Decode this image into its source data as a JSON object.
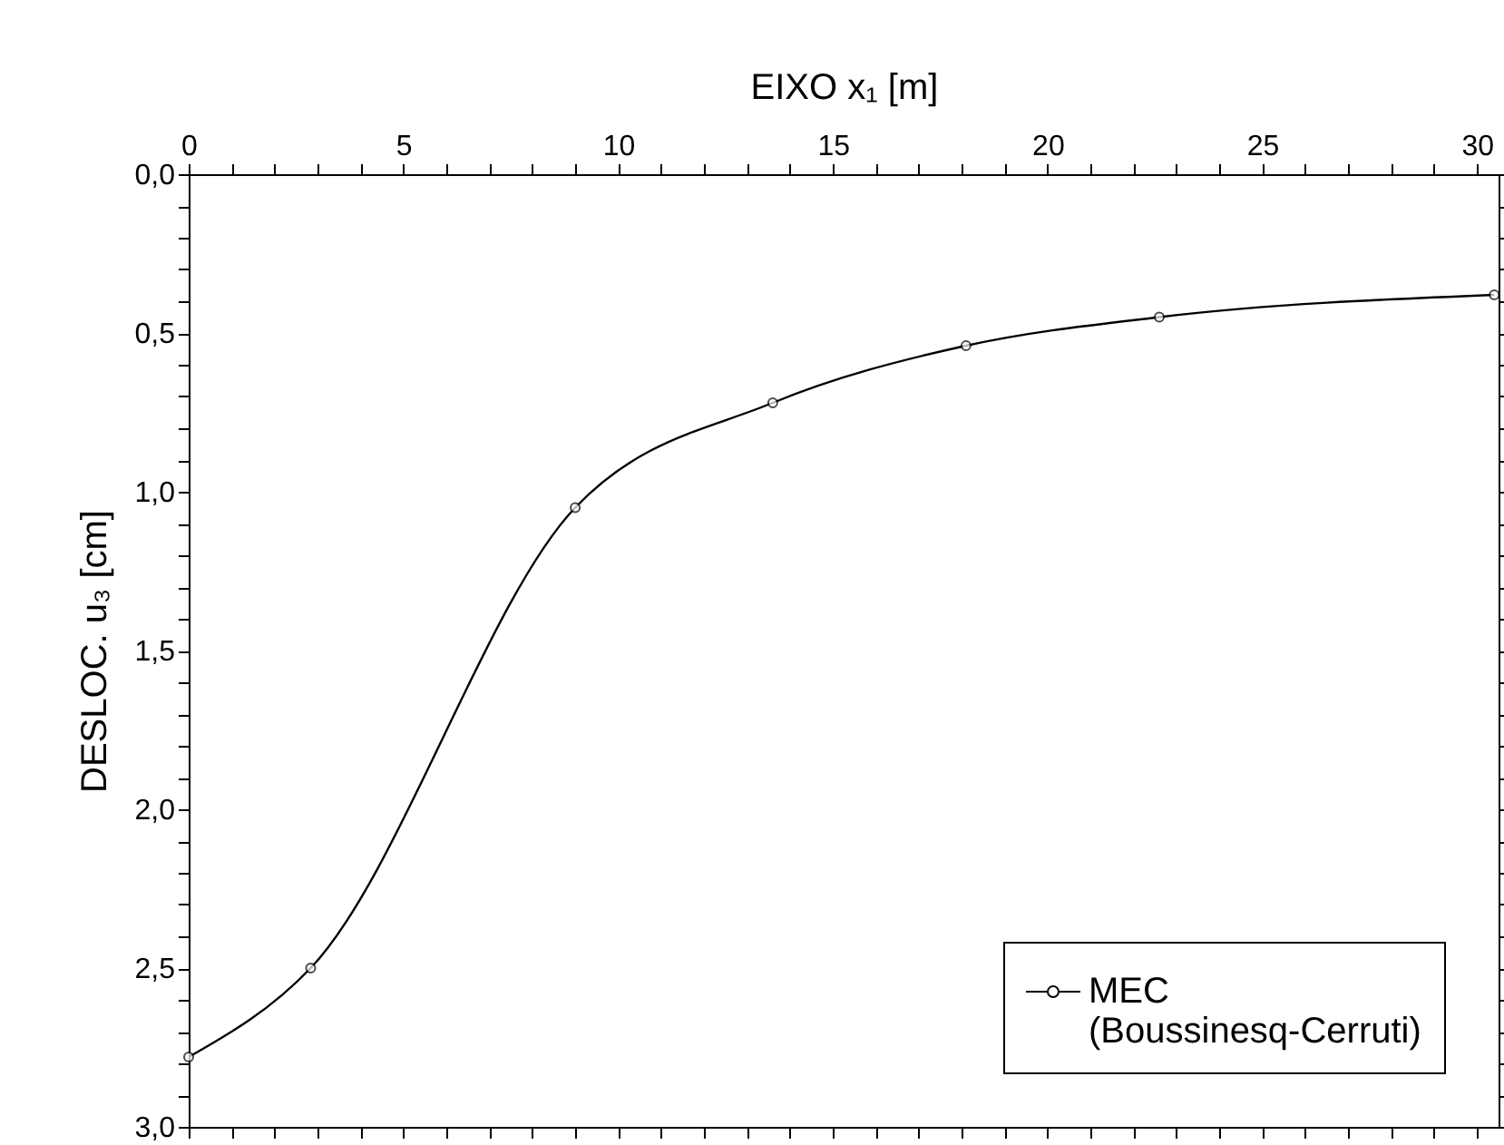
{
  "chart_data": {
    "type": "line",
    "xlabel": "EIXO x₁ [m]",
    "ylabel": "DESLOC. u₃ [cm]",
    "x": [
      0,
      2.84,
      9.0,
      13.6,
      18.1,
      22.6,
      30.4
    ],
    "series": [
      {
        "name": "MEC (Boussinesq-Cerruti)",
        "color": "#000000",
        "values": [
          2.78,
          2.5,
          1.05,
          0.72,
          0.54,
          0.45,
          0.38
        ]
      }
    ],
    "xlim": [
      0,
      30.5
    ],
    "ylim": [
      3.0,
      0.0
    ],
    "xticks": [
      0,
      {
        "value": 1,
        "label": null
      },
      {
        "value": 2,
        "label": null
      },
      {
        "value": 3,
        "label": null
      },
      {
        "value": 4,
        "label": null
      },
      5,
      {
        "value": 6,
        "label": null
      },
      {
        "value": 7,
        "label": null
      },
      {
        "value": 8,
        "label": null
      },
      {
        "value": 9,
        "label": null
      },
      10,
      {
        "value": 11,
        "label": null
      },
      {
        "value": 12,
        "label": null
      },
      {
        "value": 13,
        "label": null
      },
      {
        "value": 14,
        "label": null
      },
      15,
      {
        "value": 16,
        "label": null
      },
      {
        "value": 17,
        "label": null
      },
      {
        "value": 18,
        "label": null
      },
      {
        "value": 19,
        "label": null
      },
      20,
      {
        "value": 21,
        "label": null
      },
      {
        "value": 22,
        "label": null
      },
      {
        "value": 23,
        "label": null
      },
      {
        "value": 24,
        "label": null
      },
      25,
      {
        "value": 26,
        "label": null
      },
      {
        "value": 27,
        "label": null
      },
      {
        "value": 28,
        "label": null
      },
      {
        "value": 29,
        "label": null
      },
      30
    ],
    "yticks": [
      {
        "value": 0,
        "label": "0,0"
      },
      {
        "value": 0.1,
        "label": null
      },
      {
        "value": 0.2,
        "label": null
      },
      {
        "value": 0.3,
        "label": null
      },
      {
        "value": 0.4,
        "label": null
      },
      {
        "value": 0.5,
        "label": "0,5"
      },
      {
        "value": 0.6,
        "label": null
      },
      {
        "value": 0.7,
        "label": null
      },
      {
        "value": 0.8,
        "label": null
      },
      {
        "value": 0.9,
        "label": null
      },
      {
        "value": 1.0,
        "label": "1,0"
      },
      {
        "value": 1.1,
        "label": null
      },
      {
        "value": 1.2,
        "label": null
      },
      {
        "value": 1.3,
        "label": null
      },
      {
        "value": 1.4,
        "label": null
      },
      {
        "value": 1.5,
        "label": "1,5"
      },
      {
        "value": 1.6,
        "label": null
      },
      {
        "value": 1.7,
        "label": null
      },
      {
        "value": 1.8,
        "label": null
      },
      {
        "value": 1.9,
        "label": null
      },
      {
        "value": 2.0,
        "label": "2,0"
      },
      {
        "value": 2.1,
        "label": null
      },
      {
        "value": 2.2,
        "label": null
      },
      {
        "value": 2.3,
        "label": null
      },
      {
        "value": 2.4,
        "label": null
      },
      {
        "value": 2.5,
        "label": "2,5"
      },
      {
        "value": 2.6,
        "label": null
      },
      {
        "value": 2.7,
        "label": null
      },
      {
        "value": 2.8,
        "label": null
      },
      {
        "value": 2.9,
        "label": null
      },
      {
        "value": 3.0,
        "label": "3,0"
      }
    ],
    "grid": false,
    "legend": "bottom right",
    "marker": "circle",
    "line_style": "solid"
  }
}
